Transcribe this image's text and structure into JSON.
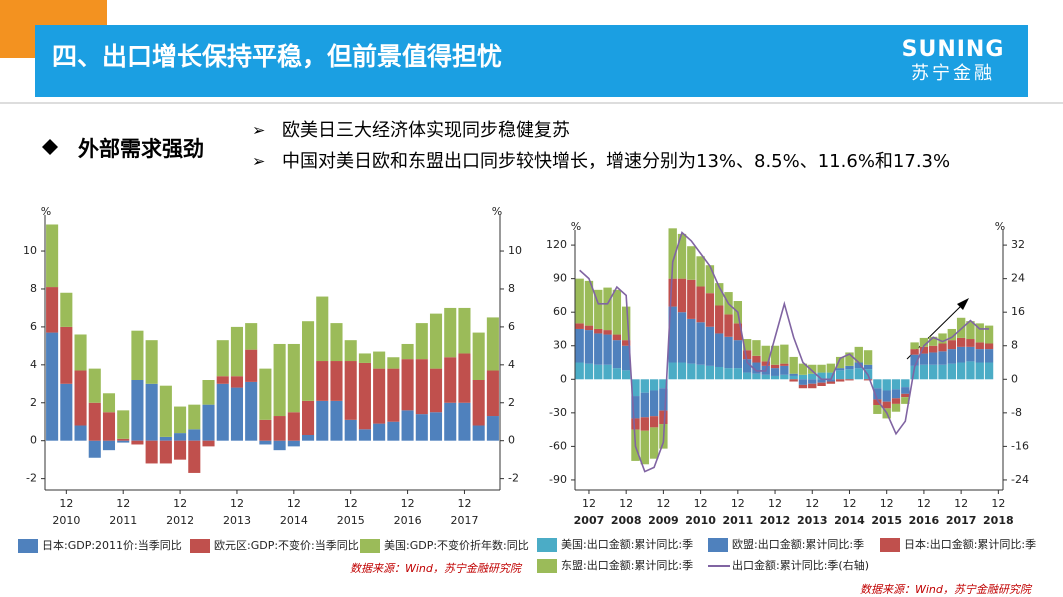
{
  "header": {
    "title": "四、出口增长保持平稳，但前景值得担忧",
    "logo_en": "SUNING",
    "logo_cn": "苏宁金融"
  },
  "section": {
    "heading": "外部需求强劲",
    "points": [
      "欧美日三大经济体实现同步稳健复苏",
      "中国对美日欧和东盟出口同步较快增长，增速分别为13%、8.5%、11.6%和17.3%"
    ]
  },
  "chart_data": [
    {
      "type": "bar",
      "stacked": true,
      "mirror_axis": true,
      "y_unit": "%",
      "categories": [
        null,
        "12",
        null,
        null,
        null,
        "12",
        null,
        null,
        null,
        "12",
        null,
        null,
        null,
        "12",
        null,
        null,
        null,
        "12",
        null,
        null,
        null,
        "12",
        null,
        null,
        null,
        "12",
        null,
        null,
        null,
        "12",
        null,
        null
      ],
      "year_labels": [
        "2010",
        "2011",
        "2012",
        "2013",
        "2014",
        "2015",
        "2016",
        "2017"
      ],
      "ylim": [
        -2.6,
        11.9
      ],
      "yticks": [
        -2,
        0,
        2,
        4,
        6,
        8,
        10
      ],
      "series": [
        {
          "name": "日本:GDP:2011价:当季同比",
          "color": "#4f81bd",
          "values": [
            5.7,
            3.0,
            0.8,
            -0.9,
            -0.5,
            -0.1,
            3.2,
            3.0,
            0.2,
            0.4,
            0.6,
            1.9,
            3.0,
            2.8,
            3.1,
            -0.2,
            -0.5,
            -0.3,
            0.3,
            2.1,
            2.1,
            1.1,
            0.6,
            0.9,
            1.0,
            1.6,
            1.4,
            1.5,
            2.0,
            2.0,
            0.8,
            1.3
          ]
        },
        {
          "name": "欧元区:GDP:不变价:当季同比",
          "color": "#c0504d",
          "values": [
            2.4,
            3.0,
            2.9,
            2.0,
            1.5,
            0.1,
            -0.2,
            -1.2,
            -1.2,
            -1.0,
            -1.7,
            -0.3,
            0.4,
            0.6,
            1.7,
            1.1,
            1.3,
            1.5,
            1.8,
            2.1,
            2.1,
            3.1,
            3.5,
            2.9,
            2.8,
            2.7,
            2.9,
            2.3,
            2.4,
            2.6,
            2.4,
            2.4
          ]
        },
        {
          "name": "美国:GDP:不变价折年数:同比",
          "color": "#9bbb59",
          "values": [
            3.3,
            1.8,
            1.9,
            1.8,
            1.0,
            1.5,
            2.6,
            2.3,
            2.7,
            1.4,
            1.3,
            1.3,
            1.9,
            2.6,
            1.4,
            2.7,
            3.8,
            3.6,
            4.2,
            3.4,
            2.0,
            1.1,
            0.5,
            0.9,
            0.6,
            0.8,
            1.9,
            2.9,
            2.6,
            2.4,
            2.5,
            2.8
          ]
        }
      ],
      "source": "数据来源：Wind，苏宁金融研究院"
    },
    {
      "type": "bar",
      "stacked": true,
      "y_unit": "%",
      "y2_unit": "%",
      "categories": [
        null,
        "12",
        null,
        null,
        null,
        "12",
        null,
        null,
        null,
        "12",
        null,
        null,
        null,
        "12",
        null,
        null,
        null,
        "12",
        null,
        null,
        null,
        "12",
        null,
        null,
        null,
        "12",
        null,
        null,
        null,
        "12",
        null,
        null,
        null,
        "12",
        null,
        null,
        null,
        "12",
        null,
        null,
        null,
        "12",
        null,
        null,
        null,
        "12"
      ],
      "year_labels": [
        "2007",
        "2008",
        "2009",
        "2010",
        "2011",
        "2012",
        "2013",
        "2014",
        "2015",
        "2016",
        "2017",
        "2018"
      ],
      "ylim": [
        -99,
        133.5
      ],
      "yticks": [
        -90,
        -60,
        -30,
        0,
        30,
        60,
        90,
        120
      ],
      "y2lim": [
        -26.4,
        35.6
      ],
      "y2ticks": [
        -24,
        -16,
        -8,
        0,
        8,
        16,
        24,
        32
      ],
      "series": [
        {
          "name": "美国:出口金额:累计同比:季",
          "color": "#4bacc6",
          "values": [
            15,
            14,
            13,
            13,
            10,
            8,
            -15,
            -12,
            -10,
            -8,
            15,
            15,
            14,
            13,
            12,
            11,
            10,
            10,
            6,
            5,
            4,
            3,
            4,
            3,
            4,
            5,
            6,
            6,
            8,
            9,
            10,
            9,
            -8,
            -10,
            -9,
            -7,
            12,
            13,
            13,
            13,
            14,
            15,
            16,
            15,
            15,
            null
          ]
        },
        {
          "name": "欧盟:出口金额:累计同比:季",
          "color": "#4f81bd",
          "values": [
            30,
            30,
            28,
            27,
            25,
            22,
            -20,
            -22,
            -23,
            -20,
            50,
            45,
            40,
            38,
            35,
            30,
            28,
            25,
            12,
            10,
            8,
            7,
            8,
            2,
            -5,
            -4,
            -3,
            -2,
            2,
            3,
            5,
            4,
            -10,
            -10,
            -8,
            -6,
            10,
            10,
            11,
            12,
            13,
            14,
            13,
            12,
            12,
            null
          ]
        },
        {
          "name": "日本:出口金额:累计同比:季",
          "color": "#c0504d",
          "values": [
            5,
            4,
            4,
            4,
            5,
            5,
            -10,
            -12,
            -10,
            -12,
            25,
            30,
            35,
            32,
            30,
            25,
            20,
            15,
            8,
            6,
            4,
            3,
            2,
            -2,
            -3,
            -4,
            -3,
            -2,
            -2,
            -1,
            0,
            -1,
            -5,
            -6,
            -5,
            -3,
            5,
            6,
            6,
            7,
            8,
            8,
            7,
            6,
            5,
            null
          ]
        },
        {
          "name": "东盟:出口金额:累计同比:季",
          "color": "#9bbb59",
          "values": [
            40,
            40,
            35,
            38,
            40,
            30,
            -28,
            -30,
            -28,
            -22,
            45,
            40,
            30,
            27,
            25,
            20,
            20,
            20,
            10,
            14,
            14,
            17,
            17,
            15,
            10,
            8,
            7,
            8,
            10,
            12,
            14,
            13,
            -8,
            -9,
            -7,
            -6,
            6,
            8,
            8,
            9,
            10,
            18,
            16,
            17,
            16,
            null
          ]
        },
        {
          "name": "出口金额:累计同比:季(右轴)",
          "color": "#8064a2",
          "type": "line",
          "axis": "y2",
          "values": [
            26,
            24,
            18,
            18,
            22,
            20,
            -16,
            -22,
            -21,
            -15,
            28,
            35,
            33,
            30,
            27,
            22,
            18,
            16,
            4,
            2,
            2,
            10,
            18,
            10,
            4,
            2,
            0,
            0,
            5,
            6,
            4,
            1,
            -5,
            -8,
            -13,
            -10,
            3,
            8,
            10,
            9,
            10,
            12,
            14,
            12,
            12,
            null
          ]
        }
      ],
      "source": "数据来源：Wind，苏宁金融研究院"
    }
  ]
}
